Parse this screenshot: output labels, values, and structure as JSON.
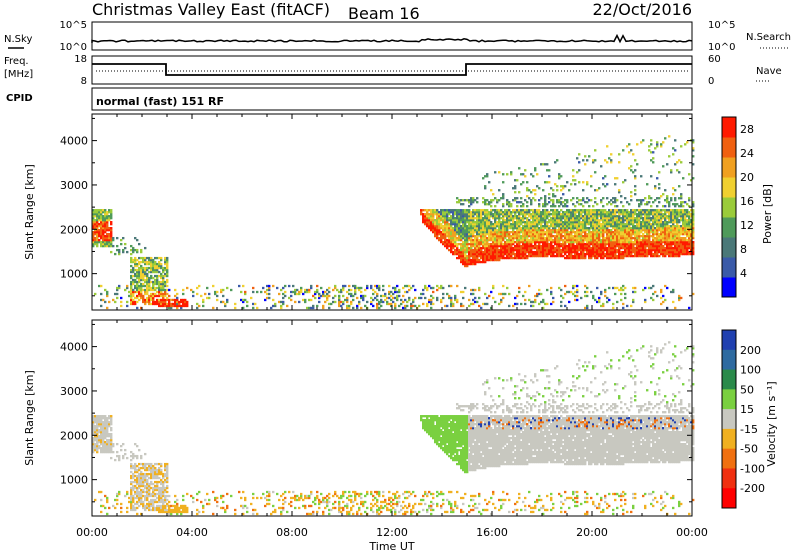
{
  "header": {
    "station": "Christmas Valley East (fitACF)",
    "beam": "Beam 16",
    "date": "22/Oct/2016"
  },
  "panels": {
    "nsky_label": "N.Sky",
    "nsearch_label": "N.Search",
    "freq_label_line1": "Freq.",
    "freq_label_line2": "[MHz]",
    "nave_label": "Nave",
    "cpid_label": "CPID",
    "cpid_value": "normal (fast) 151 RF",
    "noise_ticks_left": [
      "10^5",
      "10^0"
    ],
    "noise_ticks_right": [
      "10^5",
      "10^0"
    ],
    "freq_ticks": [
      "18",
      "8"
    ],
    "nave_ticks": [
      "60",
      "0"
    ]
  },
  "chart_data": [
    {
      "type": "heatmap",
      "name": "power-panel",
      "ylabel": "Slant Range [km]",
      "ytick_labels": [
        "1000",
        "2000",
        "3000",
        "4000"
      ],
      "ylim": [
        180,
        4600
      ],
      "colorbar": {
        "title": "Power [dB]",
        "tick_labels": [
          "4",
          "8",
          "12",
          "16",
          "20",
          "24",
          "28"
        ],
        "tick_values": [
          4,
          8,
          12,
          16,
          20,
          24,
          28
        ],
        "range": [
          0,
          30
        ],
        "colors": [
          "#0000ff",
          "#3a5aa8",
          "#4a7878",
          "#4f9a5a",
          "#9acb3a",
          "#f0d030",
          "#f0a020",
          "#f06010",
          "#ff1a00"
        ]
      }
    },
    {
      "type": "heatmap",
      "name": "velocity-panel",
      "ylabel": "Slant Range [km]",
      "ytick_labels": [
        "1000",
        "2000",
        "3000",
        "4000"
      ],
      "ylim": [
        180,
        4600
      ],
      "colorbar": {
        "title": "Velocity [m s⁻¹]",
        "tick_labels": [
          "200",
          "100",
          "50",
          "15",
          "-15",
          "-50",
          "-100",
          "-200"
        ],
        "colors": [
          "#2040b0",
          "#2e6aa0",
          "#2a8a4a",
          "#7ad040",
          "#c8c8c0",
          "#f0b020",
          "#f07010",
          "#f03010",
          "#ff0000"
        ]
      }
    }
  ],
  "x_axis": {
    "label": "Time UT",
    "tick_labels": [
      "00:00",
      "04:00",
      "08:00",
      "12:00",
      "16:00",
      "20:00",
      "00:00"
    ]
  }
}
